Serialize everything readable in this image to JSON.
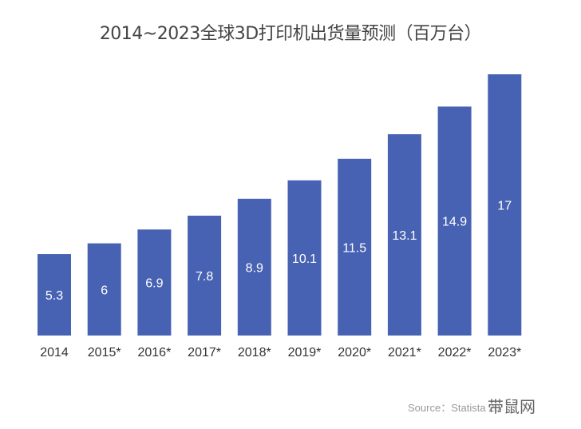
{
  "chart_data": {
    "type": "bar",
    "title": "2014~2023全球3D打印机出货量预测（百万台）",
    "categories": [
      "2014",
      "2015*",
      "2016*",
      "2017*",
      "2018*",
      "2019*",
      "2020*",
      "2021*",
      "2022*",
      "2023*"
    ],
    "values": [
      5.3,
      6,
      6.9,
      7.8,
      8.9,
      10.1,
      11.5,
      13.1,
      14.9,
      17
    ],
    "data_labels": [
      "5.3",
      "6",
      "6.9",
      "7.8",
      "8.9",
      "10.1",
      "11.5",
      "13.1",
      "14.9",
      "17"
    ],
    "xlabel": "",
    "ylabel": "",
    "ylim": [
      0,
      17
    ],
    "grid": false,
    "bar_color": "#4862b3",
    "label_color": "#ffffff"
  },
  "source": "Source：Statista 20",
  "watermark": "带鼠网"
}
